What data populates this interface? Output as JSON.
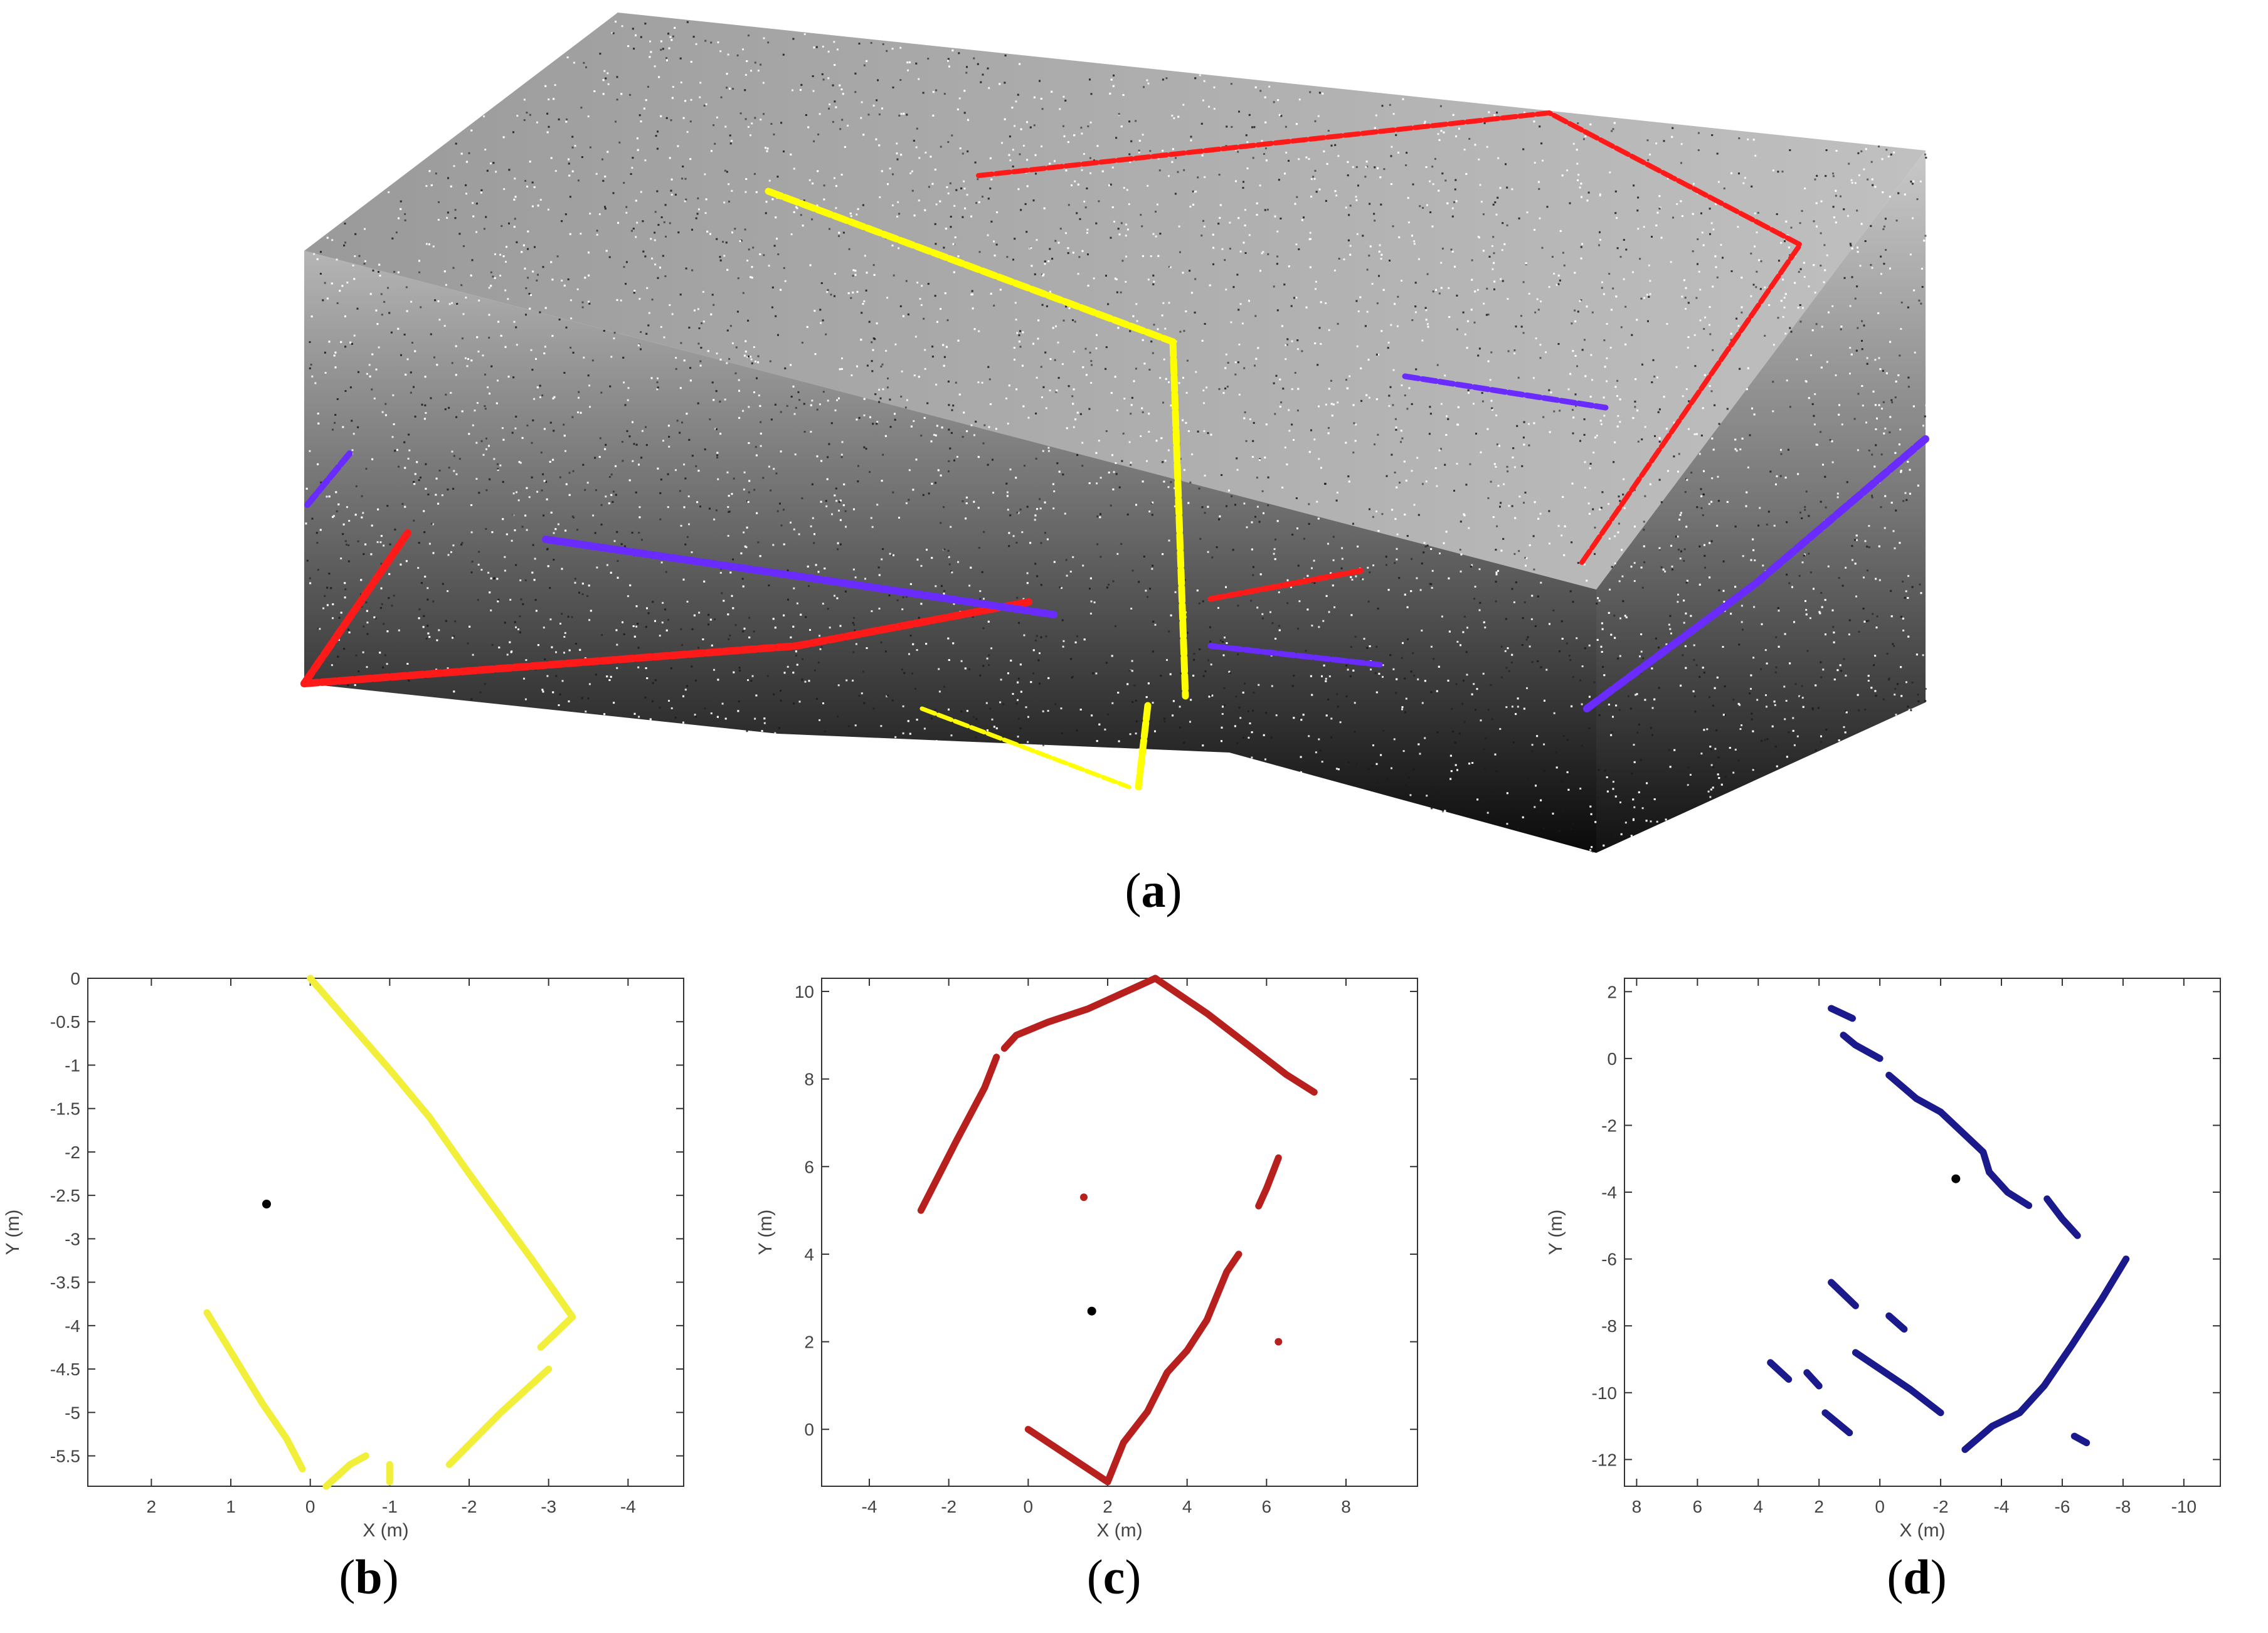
{
  "captions": [
    "(a)",
    "(b)",
    "(c)",
    "(d)"
  ],
  "colors": {
    "yellow": "#f2ef3a",
    "red_plot": "#b8201e",
    "blue_plot": "#1a1a8c",
    "red_3d": "#ff1a1a",
    "blue_3d": "#6a2bff",
    "yellow_3d": "#ffff00"
  },
  "panel_a": {
    "type": "point-cloud",
    "overlay_colors": [
      "yellow",
      "red",
      "blue"
    ]
  },
  "chart_data": [
    {
      "panel": "b",
      "type": "scatter",
      "xlabel": "X (m)",
      "ylabel": "Y (m)",
      "xlim": [
        2.8,
        -4.7
      ],
      "ylim": [
        -5.85,
        0
      ],
      "x_ticks": [
        2,
        1,
        0,
        -1,
        -2,
        -3,
        -4
      ],
      "y_ticks": [
        0,
        -0.5,
        -1,
        -1.5,
        -2,
        -2.5,
        -3,
        -3.5,
        -4,
        -4.5,
        -5,
        -5.5
      ],
      "color": "yellow",
      "segments": [
        [
          [
            0,
            0
          ],
          [
            -1.0,
            -1.05
          ],
          [
            -1.5,
            -1.6
          ],
          [
            -2.0,
            -2.25
          ],
          [
            -2.4,
            -2.75
          ],
          [
            -2.8,
            -3.25
          ],
          [
            -3.3,
            -3.9
          ]
        ],
        [
          [
            -3.3,
            -3.9
          ],
          [
            -2.9,
            -4.25
          ]
        ],
        [
          [
            -3.0,
            -4.5
          ],
          [
            -2.4,
            -5.0
          ],
          [
            -1.75,
            -5.6
          ]
        ],
        [
          [
            1.3,
            -3.85
          ],
          [
            0.9,
            -4.45
          ],
          [
            0.6,
            -4.9
          ],
          [
            0.3,
            -5.3
          ],
          [
            0.1,
            -5.65
          ]
        ],
        [
          [
            -0.2,
            -5.85
          ],
          [
            -0.5,
            -5.6
          ],
          [
            -0.7,
            -5.5
          ]
        ],
        [
          [
            -1.0,
            -5.6
          ],
          [
            -1.0,
            -5.8
          ]
        ]
      ],
      "center_point": [
        0.55,
        -2.6
      ]
    },
    {
      "panel": "c",
      "type": "scatter",
      "xlabel": "X (m)",
      "ylabel": "Y (m)",
      "xlim": [
        -5.2,
        9.8
      ],
      "ylim": [
        -1.3,
        10.3
      ],
      "x_ticks": [
        -4,
        -2,
        0,
        2,
        4,
        6,
        8
      ],
      "y_ticks": [
        0,
        2,
        4,
        6,
        8,
        10
      ],
      "color": "red_plot",
      "segments": [
        [
          [
            -2.7,
            5.0
          ],
          [
            -1.8,
            6.6
          ],
          [
            -1.1,
            7.8
          ],
          [
            -0.8,
            8.5
          ]
        ],
        [
          [
            -0.6,
            8.7
          ],
          [
            -0.3,
            9.0
          ],
          [
            0.5,
            9.3
          ],
          [
            1.5,
            9.6
          ],
          [
            3.2,
            10.3
          ]
        ],
        [
          [
            3.2,
            10.3
          ],
          [
            4.5,
            9.5
          ],
          [
            5.5,
            8.8
          ],
          [
            6.5,
            8.1
          ],
          [
            7.2,
            7.7
          ]
        ],
        [
          [
            6.3,
            6.2
          ],
          [
            6.0,
            5.5
          ],
          [
            5.8,
            5.1
          ]
        ],
        [
          [
            0,
            0
          ],
          [
            1.0,
            -0.6
          ],
          [
            2.0,
            -1.2
          ]
        ],
        [
          [
            2.0,
            -1.2
          ],
          [
            2.4,
            -0.3
          ],
          [
            3.0,
            0.4
          ],
          [
            3.5,
            1.3
          ],
          [
            4.0,
            1.8
          ],
          [
            4.5,
            2.5
          ],
          [
            5.0,
            3.6
          ],
          [
            5.3,
            4.0
          ]
        ]
      ],
      "dots": [
        [
          1.4,
          5.3
        ],
        [
          6.3,
          2.0
        ]
      ],
      "center_point": [
        1.6,
        2.7
      ]
    },
    {
      "panel": "d",
      "type": "scatter",
      "xlabel": "X (m)",
      "ylabel": "Y (m)",
      "xlim": [
        8.4,
        -11.2
      ],
      "ylim": [
        -12.8,
        2.4
      ],
      "x_ticks": [
        8,
        6,
        4,
        2,
        0,
        -2,
        -4,
        -6,
        -8,
        -10
      ],
      "y_ticks": [
        2,
        0,
        -2,
        -4,
        -6,
        -8,
        -10,
        -12
      ],
      "color": "blue_plot",
      "segments": [
        [
          [
            0,
            0
          ],
          [
            0.8,
            0.4
          ],
          [
            1.2,
            0.7
          ]
        ],
        [
          [
            0.9,
            1.2
          ],
          [
            1.6,
            1.5
          ]
        ],
        [
          [
            -0.3,
            -0.5
          ],
          [
            -1.2,
            -1.2
          ],
          [
            -2.0,
            -1.6
          ]
        ],
        [
          [
            -2.0,
            -1.6
          ],
          [
            -2.7,
            -2.2
          ],
          [
            -3.4,
            -2.8
          ],
          [
            -3.6,
            -3.4
          ]
        ],
        [
          [
            -3.6,
            -3.4
          ],
          [
            -4.2,
            -4.0
          ],
          [
            -4.9,
            -4.4
          ]
        ],
        [
          [
            -5.5,
            -4.2
          ],
          [
            -6.0,
            -4.8
          ],
          [
            -6.5,
            -5.3
          ]
        ],
        [
          [
            -8.1,
            -6.0
          ],
          [
            -7.3,
            -7.2
          ],
          [
            -6.3,
            -8.6
          ],
          [
            -5.4,
            -9.8
          ]
        ],
        [
          [
            -5.4,
            -9.8
          ],
          [
            -4.6,
            -10.6
          ],
          [
            -3.7,
            -11.0
          ],
          [
            -2.8,
            -11.7
          ]
        ],
        [
          [
            0.8,
            -8.8
          ],
          [
            -1.0,
            -9.9
          ],
          [
            -2.0,
            -10.6
          ]
        ],
        [
          [
            1.6,
            -6.7
          ],
          [
            0.8,
            -7.4
          ]
        ],
        [
          [
            -0.3,
            -7.7
          ],
          [
            -0.8,
            -8.1
          ]
        ],
        [
          [
            3.6,
            -9.1
          ],
          [
            3.0,
            -9.6
          ]
        ],
        [
          [
            2.4,
            -9.4
          ],
          [
            2.0,
            -9.8
          ]
        ],
        [
          [
            1.8,
            -10.6
          ],
          [
            1.0,
            -11.2
          ]
        ],
        [
          [
            -6.4,
            -11.3
          ],
          [
            -6.8,
            -11.5
          ]
        ]
      ],
      "center_point": [
        -2.5,
        -3.6
      ]
    }
  ]
}
